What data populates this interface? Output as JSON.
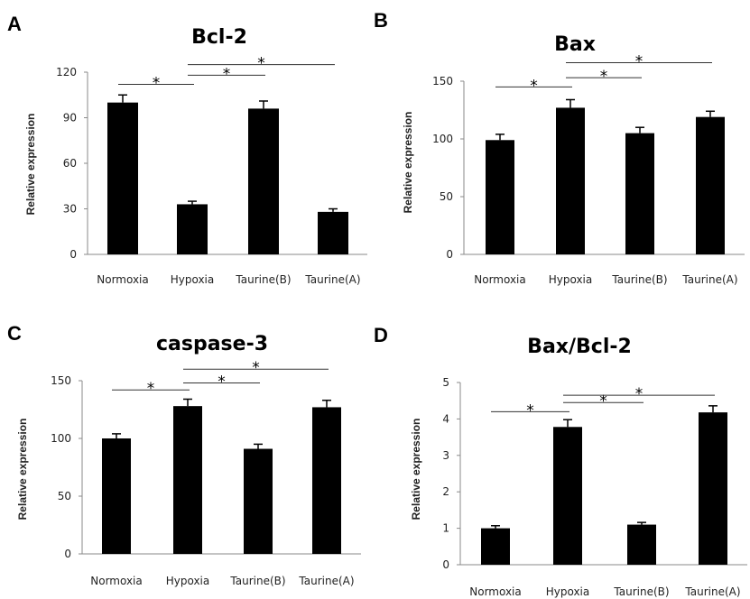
{
  "chart_data": [
    {
      "panel": "A",
      "type": "bar",
      "title": "Bcl-2",
      "ylabel": "Relative expression",
      "xlabel": "",
      "categories": [
        "Normoxia",
        "Hypoxia",
        "Taurine(B)",
        "Taurine(A)"
      ],
      "values": [
        100,
        33,
        96,
        28
      ],
      "errors": [
        5,
        2,
        5,
        2
      ],
      "ylim": [
        0,
        120
      ],
      "yticks": [
        "0",
        "30",
        "60",
        "90",
        "120"
      ],
      "significance": [
        {
          "from": 0,
          "to": 1,
          "label": "*",
          "value": 112
        },
        {
          "from": 1,
          "to": 2,
          "label": "*",
          "value": 118
        },
        {
          "from": 1,
          "to": 3,
          "label": "*",
          "value": 125
        }
      ],
      "bar_color": "#000000",
      "legend": false,
      "grid": false
    },
    {
      "panel": "B",
      "type": "bar",
      "title": "Bax",
      "ylabel": "Relative expression",
      "xlabel": "",
      "categories": [
        "Normoxia",
        "Hypoxia",
        "Taurine(B)",
        "Taurine(A)"
      ],
      "values": [
        99,
        127,
        105,
        119
      ],
      "errors": [
        5,
        7,
        5,
        5
      ],
      "ylim": [
        0,
        150
      ],
      "yticks": [
        "0",
        "50",
        "100",
        "150"
      ],
      "significance": [
        {
          "from": 0,
          "to": 1,
          "label": "*",
          "value": 145
        },
        {
          "from": 1,
          "to": 2,
          "label": "*",
          "value": 153
        },
        {
          "from": 1,
          "to": 3,
          "label": "*",
          "value": 166
        }
      ],
      "bar_color": "#000000",
      "legend": false,
      "grid": false
    },
    {
      "panel": "C",
      "type": "bar",
      "title": "caspase-3",
      "ylabel": "Relative expression",
      "xlabel": "",
      "categories": [
        "Normoxia",
        "Hypoxia",
        "Taurine(B)",
        "Taurine(A)"
      ],
      "values": [
        100,
        128,
        91,
        127
      ],
      "errors": [
        4,
        6,
        4,
        6
      ],
      "ylim": [
        0,
        150
      ],
      "yticks": [
        "0",
        "50",
        "100",
        "150"
      ],
      "significance": [
        {
          "from": 0,
          "to": 1,
          "label": "*",
          "value": 142
        },
        {
          "from": 1,
          "to": 2,
          "label": "*",
          "value": 148
        },
        {
          "from": 1,
          "to": 3,
          "label": "*",
          "value": 160
        }
      ],
      "bar_color": "#000000",
      "legend": false,
      "grid": false
    },
    {
      "panel": "D",
      "type": "bar",
      "title": "Bax/Bcl-2",
      "ylabel": "Relative expression",
      "xlabel": "",
      "categories": [
        "Normoxia",
        "Hypoxia",
        "Taurine(B)",
        "Taurine(A)"
      ],
      "values": [
        1.0,
        3.78,
        1.1,
        4.18
      ],
      "errors": [
        0.07,
        0.2,
        0.06,
        0.18
      ],
      "ylim": [
        0,
        5
      ],
      "yticks": [
        "0",
        "1",
        "2",
        "3",
        "4",
        "5"
      ],
      "significance": [
        {
          "from": 0,
          "to": 1,
          "label": "*",
          "value": 4.2
        },
        {
          "from": 1,
          "to": 2,
          "label": "*",
          "value": 4.45
        },
        {
          "from": 1,
          "to": 3,
          "label": "*",
          "value": 4.65
        }
      ],
      "bar_color": "#000000",
      "legend": false,
      "grid": false
    }
  ]
}
